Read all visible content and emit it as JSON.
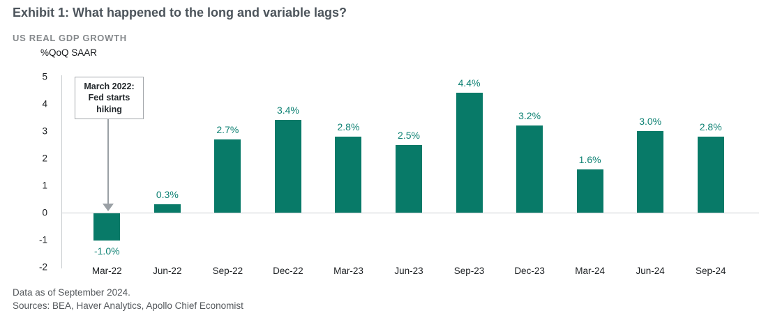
{
  "header": {
    "title": "Exhibit 1: What happened to the long and variable lags?",
    "subtitle": "US REAL GDP GROWTH"
  },
  "annotation": {
    "lines": [
      "March 2022:",
      "Fed starts",
      "hiking"
    ]
  },
  "footer": {
    "line1": "Data as of September 2024.",
    "line2": "Sources: BEA, Haver Analytics, Apollo Chief Economist"
  },
  "chart_data": {
    "type": "bar",
    "title": "US REAL GDP GROWTH",
    "ylabel": "%QoQ SAAR",
    "xlabel": "",
    "categories": [
      "Mar-22",
      "Jun-22",
      "Sep-22",
      "Dec-22",
      "Mar-23",
      "Jun-23",
      "Sep-23",
      "Dec-23",
      "Mar-24",
      "Jun-24",
      "Sep-24"
    ],
    "values": [
      -1.0,
      0.3,
      2.7,
      3.4,
      2.8,
      2.5,
      4.4,
      3.2,
      1.6,
      3.0,
      2.8
    ],
    "labels": [
      "-1.0%",
      "0.3%",
      "2.7%",
      "3.4%",
      "2.8%",
      "2.5%",
      "4.4%",
      "3.2%",
      "1.6%",
      "3.0%",
      "2.8%"
    ],
    "ylim": [
      -2,
      5
    ],
    "yticks": [
      5,
      4,
      3,
      2,
      1,
      0,
      -1,
      -2
    ],
    "grid": false,
    "legend": "none",
    "bar_color": "#087a68",
    "label_color": "#0f8274",
    "axis_color": "#c9cdd0"
  }
}
